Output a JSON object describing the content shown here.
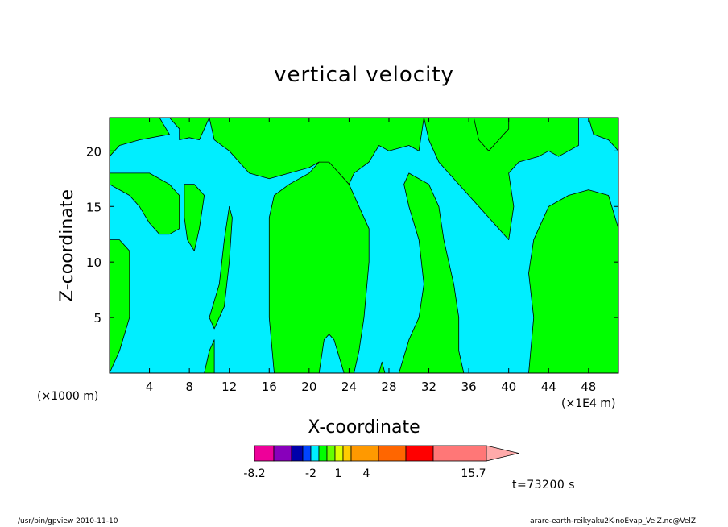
{
  "chart_data": {
    "type": "contour",
    "title": "vertical velocity",
    "xlabel": "X-coordinate",
    "ylabel": "Z-coordinate",
    "x_unit_left": "(×1000 m)",
    "x_unit_right": "(×1E4 m)",
    "xlim": [
      0,
      51
    ],
    "ylim": [
      0,
      23
    ],
    "x_ticks": [
      4,
      8,
      12,
      16,
      20,
      24,
      28,
      32,
      36,
      40,
      44,
      48
    ],
    "y_ticks": [
      5,
      10,
      15,
      20
    ],
    "fill_positive_color": "#00ff00",
    "fill_negative_color": "#00eeff",
    "positive_regions": [
      {
        "name": "top-left",
        "polygon": [
          [
            0,
            23
          ],
          [
            5,
            23
          ],
          [
            6,
            21.5
          ],
          [
            3,
            21
          ],
          [
            1,
            20.5
          ],
          [
            0,
            19.5
          ]
        ]
      },
      {
        "name": "top-band-1",
        "polygon": [
          [
            6,
            23
          ],
          [
            7,
            22
          ],
          [
            7,
            21
          ],
          [
            8,
            21.2
          ],
          [
            9,
            21
          ],
          [
            9.5,
            22
          ],
          [
            10,
            23
          ]
        ]
      },
      {
        "name": "top-band-2",
        "polygon": [
          [
            10,
            23
          ],
          [
            10.5,
            21
          ],
          [
            12,
            20
          ],
          [
            13,
            19
          ],
          [
            14,
            18
          ],
          [
            16,
            17.5
          ],
          [
            18,
            18
          ],
          [
            20,
            18.5
          ],
          [
            21,
            19
          ],
          [
            22,
            18.5
          ],
          [
            23,
            17.5
          ],
          [
            24,
            17
          ],
          [
            24.5,
            18
          ],
          [
            26,
            19
          ],
          [
            27,
            20.5
          ],
          [
            28,
            20
          ],
          [
            30,
            20.5
          ],
          [
            31,
            20
          ],
          [
            31.5,
            23
          ]
        ]
      },
      {
        "name": "upper-left-blob",
        "polygon": [
          [
            0,
            17
          ],
          [
            1,
            16.5
          ],
          [
            2,
            16
          ],
          [
            3,
            15
          ],
          [
            4,
            13.5
          ],
          [
            5,
            12.5
          ],
          [
            6,
            12.5
          ],
          [
            7,
            13
          ],
          [
            7,
            16
          ],
          [
            6,
            17
          ],
          [
            4,
            18
          ],
          [
            2,
            18
          ],
          [
            0,
            18
          ]
        ]
      },
      {
        "name": "left-edge-column",
        "polygon": [
          [
            0,
            12
          ],
          [
            1,
            12
          ],
          [
            2,
            11
          ],
          [
            2,
            5
          ],
          [
            1,
            2
          ],
          [
            0,
            0
          ],
          [
            0,
            12
          ]
        ]
      },
      {
        "name": "column-8",
        "polygon": [
          [
            7.5,
            17
          ],
          [
            8.5,
            17
          ],
          [
            9.5,
            16
          ],
          [
            9,
            13
          ],
          [
            8.5,
            11
          ],
          [
            7.8,
            12
          ],
          [
            7.5,
            14
          ]
        ]
      },
      {
        "name": "column-10-12",
        "polygon": [
          [
            10,
            5
          ],
          [
            11,
            8
          ],
          [
            11.5,
            12
          ],
          [
            12,
            15
          ],
          [
            12.3,
            14
          ],
          [
            12,
            10
          ],
          [
            11.5,
            6
          ],
          [
            10.5,
            4
          ]
        ]
      },
      {
        "name": "column-9-bottom",
        "polygon": [
          [
            9.5,
            0
          ],
          [
            10,
            2
          ],
          [
            10.5,
            3
          ],
          [
            10.5,
            0
          ]
        ]
      },
      {
        "name": "center-big",
        "polygon": [
          [
            16.5,
            0
          ],
          [
            16,
            5
          ],
          [
            16,
            10
          ],
          [
            16,
            14
          ],
          [
            16.5,
            16
          ],
          [
            18,
            17
          ],
          [
            20,
            18
          ],
          [
            21,
            19
          ],
          [
            22,
            19
          ],
          [
            24,
            17
          ],
          [
            25,
            15
          ],
          [
            26,
            13
          ],
          [
            26,
            10
          ],
          [
            25.5,
            5
          ],
          [
            25,
            2
          ],
          [
            24.5,
            0
          ],
          [
            23.5,
            0
          ],
          [
            22.5,
            3
          ],
          [
            22,
            3.5
          ],
          [
            21.5,
            3
          ],
          [
            21,
            0
          ]
        ]
      },
      {
        "name": "column-28-34",
        "polygon": [
          [
            29,
            0
          ],
          [
            30,
            3
          ],
          [
            31,
            5
          ],
          [
            31.5,
            8
          ],
          [
            31,
            12
          ],
          [
            30,
            15
          ],
          [
            29.5,
            17
          ],
          [
            30,
            18
          ],
          [
            32,
            17
          ],
          [
            33,
            15
          ],
          [
            33.5,
            12
          ],
          [
            34,
            10
          ],
          [
            34.5,
            8
          ],
          [
            35,
            5
          ],
          [
            35,
            2
          ],
          [
            35.5,
            0
          ]
        ]
      },
      {
        "name": "upper-right-band",
        "polygon": [
          [
            31.5,
            23
          ],
          [
            32,
            21
          ],
          [
            32.5,
            20
          ],
          [
            33,
            19
          ],
          [
            34,
            18
          ],
          [
            36,
            16
          ],
          [
            38,
            14
          ],
          [
            39,
            13
          ],
          [
            40,
            12
          ],
          [
            40.5,
            15
          ],
          [
            40,
            18
          ],
          [
            41,
            19
          ],
          [
            43,
            19.5
          ],
          [
            44,
            20
          ],
          [
            45,
            19.5
          ],
          [
            46,
            20
          ],
          [
            47,
            20.5
          ],
          [
            47,
            23
          ]
        ]
      },
      {
        "name": "right-bottom-block",
        "polygon": [
          [
            42,
            0
          ],
          [
            42.5,
            5
          ],
          [
            42,
            9
          ],
          [
            42.5,
            12
          ],
          [
            44,
            15
          ],
          [
            46,
            16
          ],
          [
            48,
            16.5
          ],
          [
            50,
            16
          ],
          [
            51,
            13
          ],
          [
            51,
            0
          ]
        ]
      },
      {
        "name": "column-36-38",
        "polygon": [
          [
            36.5,
            23
          ],
          [
            37,
            21
          ],
          [
            38,
            20
          ],
          [
            39,
            21
          ],
          [
            40,
            22
          ],
          [
            40,
            23
          ]
        ]
      },
      {
        "name": "top-right-corner",
        "polygon": [
          [
            48,
            23
          ],
          [
            48.5,
            21.5
          ],
          [
            50,
            21
          ],
          [
            51,
            20
          ],
          [
            51,
            23
          ]
        ]
      },
      {
        "name": "bottom-small-28",
        "polygon": [
          [
            27,
            0
          ],
          [
            27.3,
            1
          ],
          [
            27.6,
            0
          ]
        ]
      }
    ]
  },
  "colorbar": {
    "ticks": [
      "-8.2",
      "-2",
      "1",
      "4",
      "15.7"
    ],
    "colors": [
      "#ee0099",
      "#8800bb",
      "#0000aa",
      "#0044ff",
      "#00eeff",
      "#00ff00",
      "#66ff00",
      "#ddff00",
      "#ffcc00",
      "#ff9900",
      "#ff6600",
      "#ff0000",
      "#ff7777",
      "#ffaaaa"
    ]
  },
  "time_label": "t=73200 s",
  "footer": {
    "left": "/usr/bin/gpview   2010-11-10",
    "right": "arare-earth-reikyaku2K-noEvap_VelZ.nc@VelZ"
  }
}
